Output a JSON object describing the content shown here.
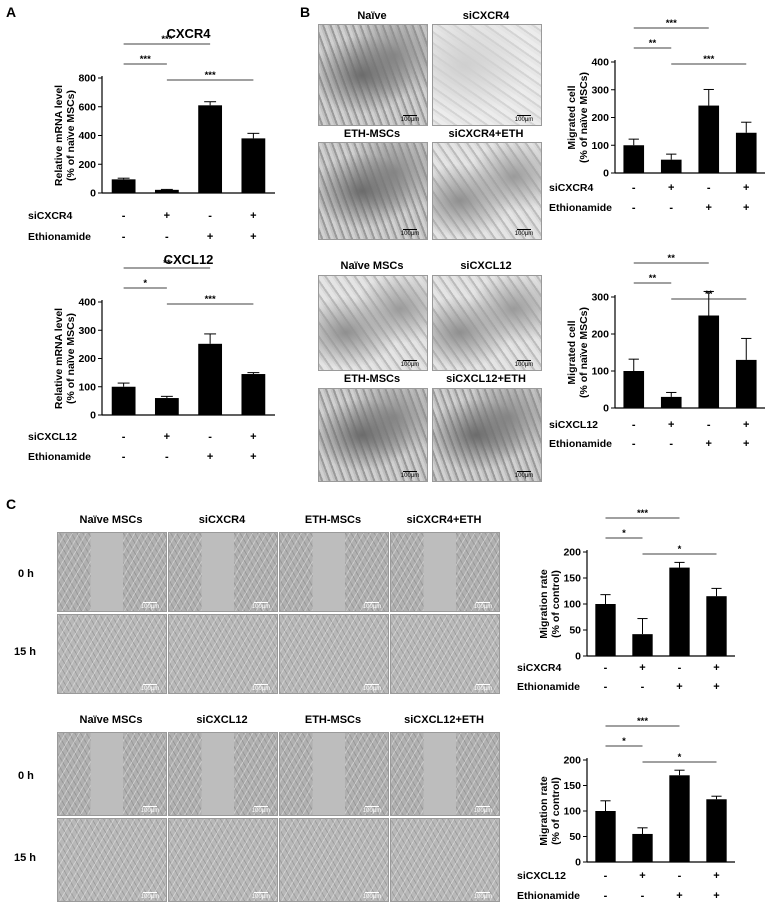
{
  "panels": {
    "a": "A",
    "b": "B",
    "c": "C"
  },
  "scale_bar": "100μm",
  "panel_b_titles_top": [
    "Naïve",
    "siCXCR4",
    "ETH-MSCs",
    "siCXCR4+ETH"
  ],
  "panel_b_titles_bottom": [
    "Naïve MSCs",
    "siCXCL12",
    "ETH-MSCs",
    "siCXCL12+ETH"
  ],
  "panel_c_titles_top": [
    "Naïve MSCs",
    "siCXCR4",
    "ETH-MSCs",
    "siCXCR4+ETH"
  ],
  "panel_c_titles_bottom": [
    "Naïve MSCs",
    "siCXCL12",
    "ETH-MSCs",
    "siCXCL12+ETH"
  ],
  "time_labels": [
    "0 h",
    "15 h"
  ],
  "chart_data": [
    {
      "id": "A-CXCR4",
      "type": "bar",
      "title": "CXCR4",
      "ylabel": [
        "Relative mRNA level",
        "(% of naïve MSCs)"
      ],
      "ylim": [
        0,
        800
      ],
      "yticks": [
        0,
        200,
        400,
        600,
        800
      ],
      "values": [
        95,
        22,
        610,
        380
      ],
      "errors": [
        8,
        3,
        25,
        35
      ],
      "conditions": [
        {
          "label": "siCXCR4",
          "signs": [
            "-",
            "+",
            "-",
            "+"
          ]
        },
        {
          "label": "Ethionamide",
          "signs": [
            "-",
            "-",
            "+",
            "+"
          ]
        }
      ],
      "significance": [
        {
          "from": 0,
          "to": 2,
          "label": "***"
        },
        {
          "from": 0,
          "to": 1,
          "label": "***"
        },
        {
          "from": 1,
          "to": 3,
          "label": "***"
        }
      ]
    },
    {
      "id": "A-CXCL12",
      "type": "bar",
      "title": "CXCL12",
      "ylabel": [
        "Relative mRNA level",
        "(% of naïve MSCs)"
      ],
      "ylim": [
        0,
        400
      ],
      "yticks": [
        0,
        100,
        200,
        300,
        400
      ],
      "values": [
        100,
        60,
        252,
        145
      ],
      "errors": [
        13,
        6,
        35,
        5
      ],
      "conditions": [
        {
          "label": "siCXCL12",
          "signs": [
            "-",
            "+",
            "-",
            "+"
          ]
        },
        {
          "label": "Ethionamide",
          "signs": [
            "-",
            "-",
            "+",
            "+"
          ]
        }
      ],
      "significance": [
        {
          "from": 0,
          "to": 2,
          "label": "**"
        },
        {
          "from": 0,
          "to": 1,
          "label": "*"
        },
        {
          "from": 1,
          "to": 3,
          "label": "***"
        }
      ]
    },
    {
      "id": "B-CXCR4",
      "type": "bar",
      "title": "",
      "ylabel": [
        "Migrated cell",
        "(% of naïve MSCs)"
      ],
      "ylim": [
        0,
        400
      ],
      "yticks": [
        0,
        100,
        200,
        300,
        400
      ],
      "values": [
        100,
        48,
        243,
        145
      ],
      "errors": [
        22,
        20,
        58,
        38
      ],
      "conditions": [
        {
          "label": "siCXCR4",
          "signs": [
            "-",
            "+",
            "-",
            "+"
          ]
        },
        {
          "label": "Ethionamide",
          "signs": [
            "-",
            "-",
            "+",
            "+"
          ]
        }
      ],
      "significance": [
        {
          "from": 0,
          "to": 2,
          "label": "***"
        },
        {
          "from": 0,
          "to": 1,
          "label": "**"
        },
        {
          "from": 1,
          "to": 3,
          "label": "***"
        }
      ]
    },
    {
      "id": "B-CXCL12",
      "type": "bar",
      "title": "",
      "ylabel": [
        "Migrated cell",
        "(% of naïve MSCs)"
      ],
      "ylim": [
        0,
        300
      ],
      "yticks": [
        0,
        100,
        200,
        300
      ],
      "values": [
        100,
        30,
        250,
        130
      ],
      "errors": [
        32,
        12,
        65,
        58
      ],
      "conditions": [
        {
          "label": "siCXCL12",
          "signs": [
            "-",
            "+",
            "-",
            "+"
          ]
        },
        {
          "label": "Ethionamide",
          "signs": [
            "-",
            "-",
            "+",
            "+"
          ]
        }
      ],
      "significance": [
        {
          "from": 0,
          "to": 2,
          "label": "**"
        },
        {
          "from": 0,
          "to": 1,
          "label": "**"
        },
        {
          "from": 1,
          "to": 3,
          "label": "**"
        }
      ]
    },
    {
      "id": "C-CXCR4",
      "type": "bar",
      "title": "",
      "ylabel": [
        "Migration rate",
        "(% of control)"
      ],
      "ylim": [
        0,
        200
      ],
      "yticks": [
        0,
        50,
        100,
        150,
        200
      ],
      "values": [
        100,
        42,
        170,
        115
      ],
      "errors": [
        18,
        30,
        10,
        15
      ],
      "conditions": [
        {
          "label": "siCXCR4",
          "signs": [
            "-",
            "+",
            "-",
            "+"
          ]
        },
        {
          "label": "Ethionamide",
          "signs": [
            "-",
            "-",
            "+",
            "+"
          ]
        }
      ],
      "significance": [
        {
          "from": 0,
          "to": 2,
          "label": "***"
        },
        {
          "from": 0,
          "to": 1,
          "label": "*"
        },
        {
          "from": 1,
          "to": 3,
          "label": "*"
        }
      ]
    },
    {
      "id": "C-CXCL12",
      "type": "bar",
      "title": "",
      "ylabel": [
        "Migration rate",
        "(% of control)"
      ],
      "ylim": [
        0,
        200
      ],
      "yticks": [
        0,
        50,
        100,
        150,
        200
      ],
      "values": [
        100,
        55,
        170,
        123
      ],
      "errors": [
        20,
        12,
        10,
        6
      ],
      "conditions": [
        {
          "label": "siCXCL12",
          "signs": [
            "-",
            "+",
            "-",
            "+"
          ]
        },
        {
          "label": "Ethionamide",
          "signs": [
            "-",
            "-",
            "+",
            "+"
          ]
        }
      ],
      "significance": [
        {
          "from": 0,
          "to": 2,
          "label": "***"
        },
        {
          "from": 0,
          "to": 1,
          "label": "*"
        },
        {
          "from": 1,
          "to": 3,
          "label": "*"
        }
      ]
    }
  ]
}
